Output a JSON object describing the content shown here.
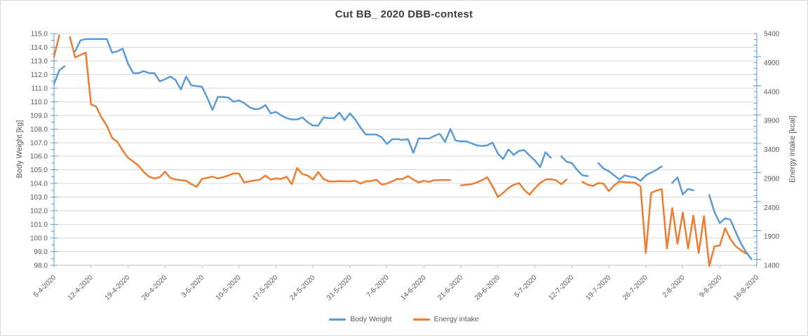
{
  "chart_data": {
    "type": "line",
    "title": "Cut BB_ 2020 DBB-contest",
    "x_tick_labels": [
      "5-4-2020",
      "12-4-2020",
      "19-4-2020",
      "26-4-2020",
      "3-5-2020",
      "10-5-2020",
      "17-5-2020",
      "24-5-2020",
      "31-5-2020",
      "7-6-2020",
      "14-6-2020",
      "21-6-2020",
      "28-6-2020",
      "5-7-2020",
      "12-7-2020",
      "19-7-2020",
      "26-7-2020",
      "2-8-2020",
      "9-8-2020",
      "16-8-2020"
    ],
    "x_tick_interval_days": 7,
    "points": 134,
    "grid": "horizontal-major-only",
    "legend_position": "bottom",
    "left_axis": {
      "title": "Body Weight [kg]",
      "min": 98,
      "max": 115,
      "major_step": 1.0,
      "minor_step": 0.5,
      "tick_labels": [
        "115.0",
        "114.0",
        "113.0",
        "112.0",
        "111.0",
        "110.0",
        "109.0",
        "108.0",
        "107.0",
        "106.0",
        "105.0",
        "104.0",
        "103.0",
        "102.0",
        "101.0",
        "100.0",
        "99.0",
        "98.0"
      ]
    },
    "right_axis": {
      "title": "Energy intake [kcal]",
      "min": 1400,
      "max": 5400,
      "major_step": 500,
      "minor_step": 100,
      "tick_labels": [
        "5400",
        "4900",
        "4400",
        "3900",
        "3400",
        "2900",
        "2400",
        "1900",
        "1400"
      ]
    },
    "series": [
      {
        "name": "Body Weight",
        "axis": "left",
        "color": "#5B9BD5",
        "values": [
          111.3,
          112.3,
          112.6,
          null,
          113.7,
          114.5,
          114.6,
          114.6,
          114.6,
          114.6,
          114.6,
          113.6,
          113.7,
          113.9,
          112.8,
          112.1,
          112.1,
          112.25,
          112.1,
          112.1,
          111.5,
          111.65,
          111.85,
          111.6,
          110.9,
          111.85,
          111.2,
          111.15,
          111.1,
          110.3,
          109.4,
          110.35,
          110.35,
          110.3,
          110.0,
          110.1,
          109.9,
          109.6,
          109.45,
          109.5,
          109.75,
          109.15,
          109.25,
          109.0,
          108.8,
          108.7,
          108.7,
          108.85,
          108.5,
          108.25,
          108.25,
          108.85,
          108.8,
          108.8,
          109.2,
          108.65,
          109.15,
          108.7,
          108.1,
          107.6,
          107.6,
          107.6,
          107.4,
          106.9,
          107.25,
          107.25,
          107.2,
          107.25,
          106.25,
          107.3,
          107.3,
          107.3,
          107.5,
          107.65,
          107.05,
          108.0,
          107.15,
          107.1,
          107.1,
          106.95,
          106.8,
          106.75,
          106.8,
          107.0,
          106.2,
          105.8,
          106.5,
          106.1,
          106.4,
          106.45,
          106.05,
          105.7,
          105.2,
          106.3,
          105.9,
          null,
          106.0,
          105.6,
          105.5,
          105.0,
          104.6,
          104.55,
          null,
          105.5,
          105.1,
          104.9,
          104.6,
          104.3,
          104.6,
          104.5,
          104.45,
          104.2,
          104.6,
          104.8,
          105.0,
          105.25,
          null,
          104.05,
          104.45,
          103.2,
          103.6,
          103.5,
          null,
          null,
          103.15,
          101.9,
          101.1,
          101.45,
          101.35,
          100.45,
          99.6,
          98.95,
          98.45,
          null
        ]
      },
      {
        "name": "Energy intake",
        "axis": "right",
        "color": "#ED7D31",
        "values": [
          5000,
          5370,
          null,
          5340,
          4990,
          5030,
          5070,
          4180,
          4140,
          3950,
          3810,
          3600,
          3530,
          3380,
          3260,
          3190,
          3120,
          3010,
          2930,
          2900,
          2920,
          3015,
          2910,
          2880,
          2870,
          2860,
          2800,
          2755,
          2890,
          2910,
          2930,
          2900,
          2920,
          2950,
          2985,
          2985,
          2830,
          2850,
          2865,
          2880,
          2950,
          2880,
          2900,
          2890,
          2930,
          2800,
          3080,
          2975,
          2950,
          2880,
          3010,
          2890,
          2850,
          2845,
          2855,
          2850,
          2850,
          2860,
          2810,
          2850,
          2855,
          2880,
          2795,
          2810,
          2850,
          2890,
          2890,
          2940,
          2880,
          2830,
          2860,
          2840,
          2870,
          2870,
          2875,
          2870,
          null,
          2780,
          2790,
          2800,
          2830,
          2870,
          2920,
          2760,
          2580,
          2650,
          2735,
          2790,
          2820,
          2700,
          2620,
          2730,
          2820,
          2880,
          2885,
          2870,
          2800,
          2880,
          null,
          null,
          2840,
          2790,
          2770,
          2820,
          2810,
          2680,
          2780,
          2845,
          2835,
          2830,
          2825,
          2760,
          1610,
          2650,
          2690,
          2715,
          1690,
          2390,
          1770,
          2310,
          1690,
          2260,
          1610,
          2250,
          1390,
          1730,
          1740,
          2040,
          1855,
          1730,
          1660,
          1600,
          null,
          null
        ]
      }
    ]
  },
  "frame": {
    "background": "#FFFFFF",
    "border_color": "#D9D9D9",
    "gridline_color": "#D9D9D9",
    "value_axis_line_color": "#5B9BD5",
    "category_axis_line_color": "#BFBFBF",
    "tick_label_color": "#595959",
    "title_color": "#404040"
  }
}
